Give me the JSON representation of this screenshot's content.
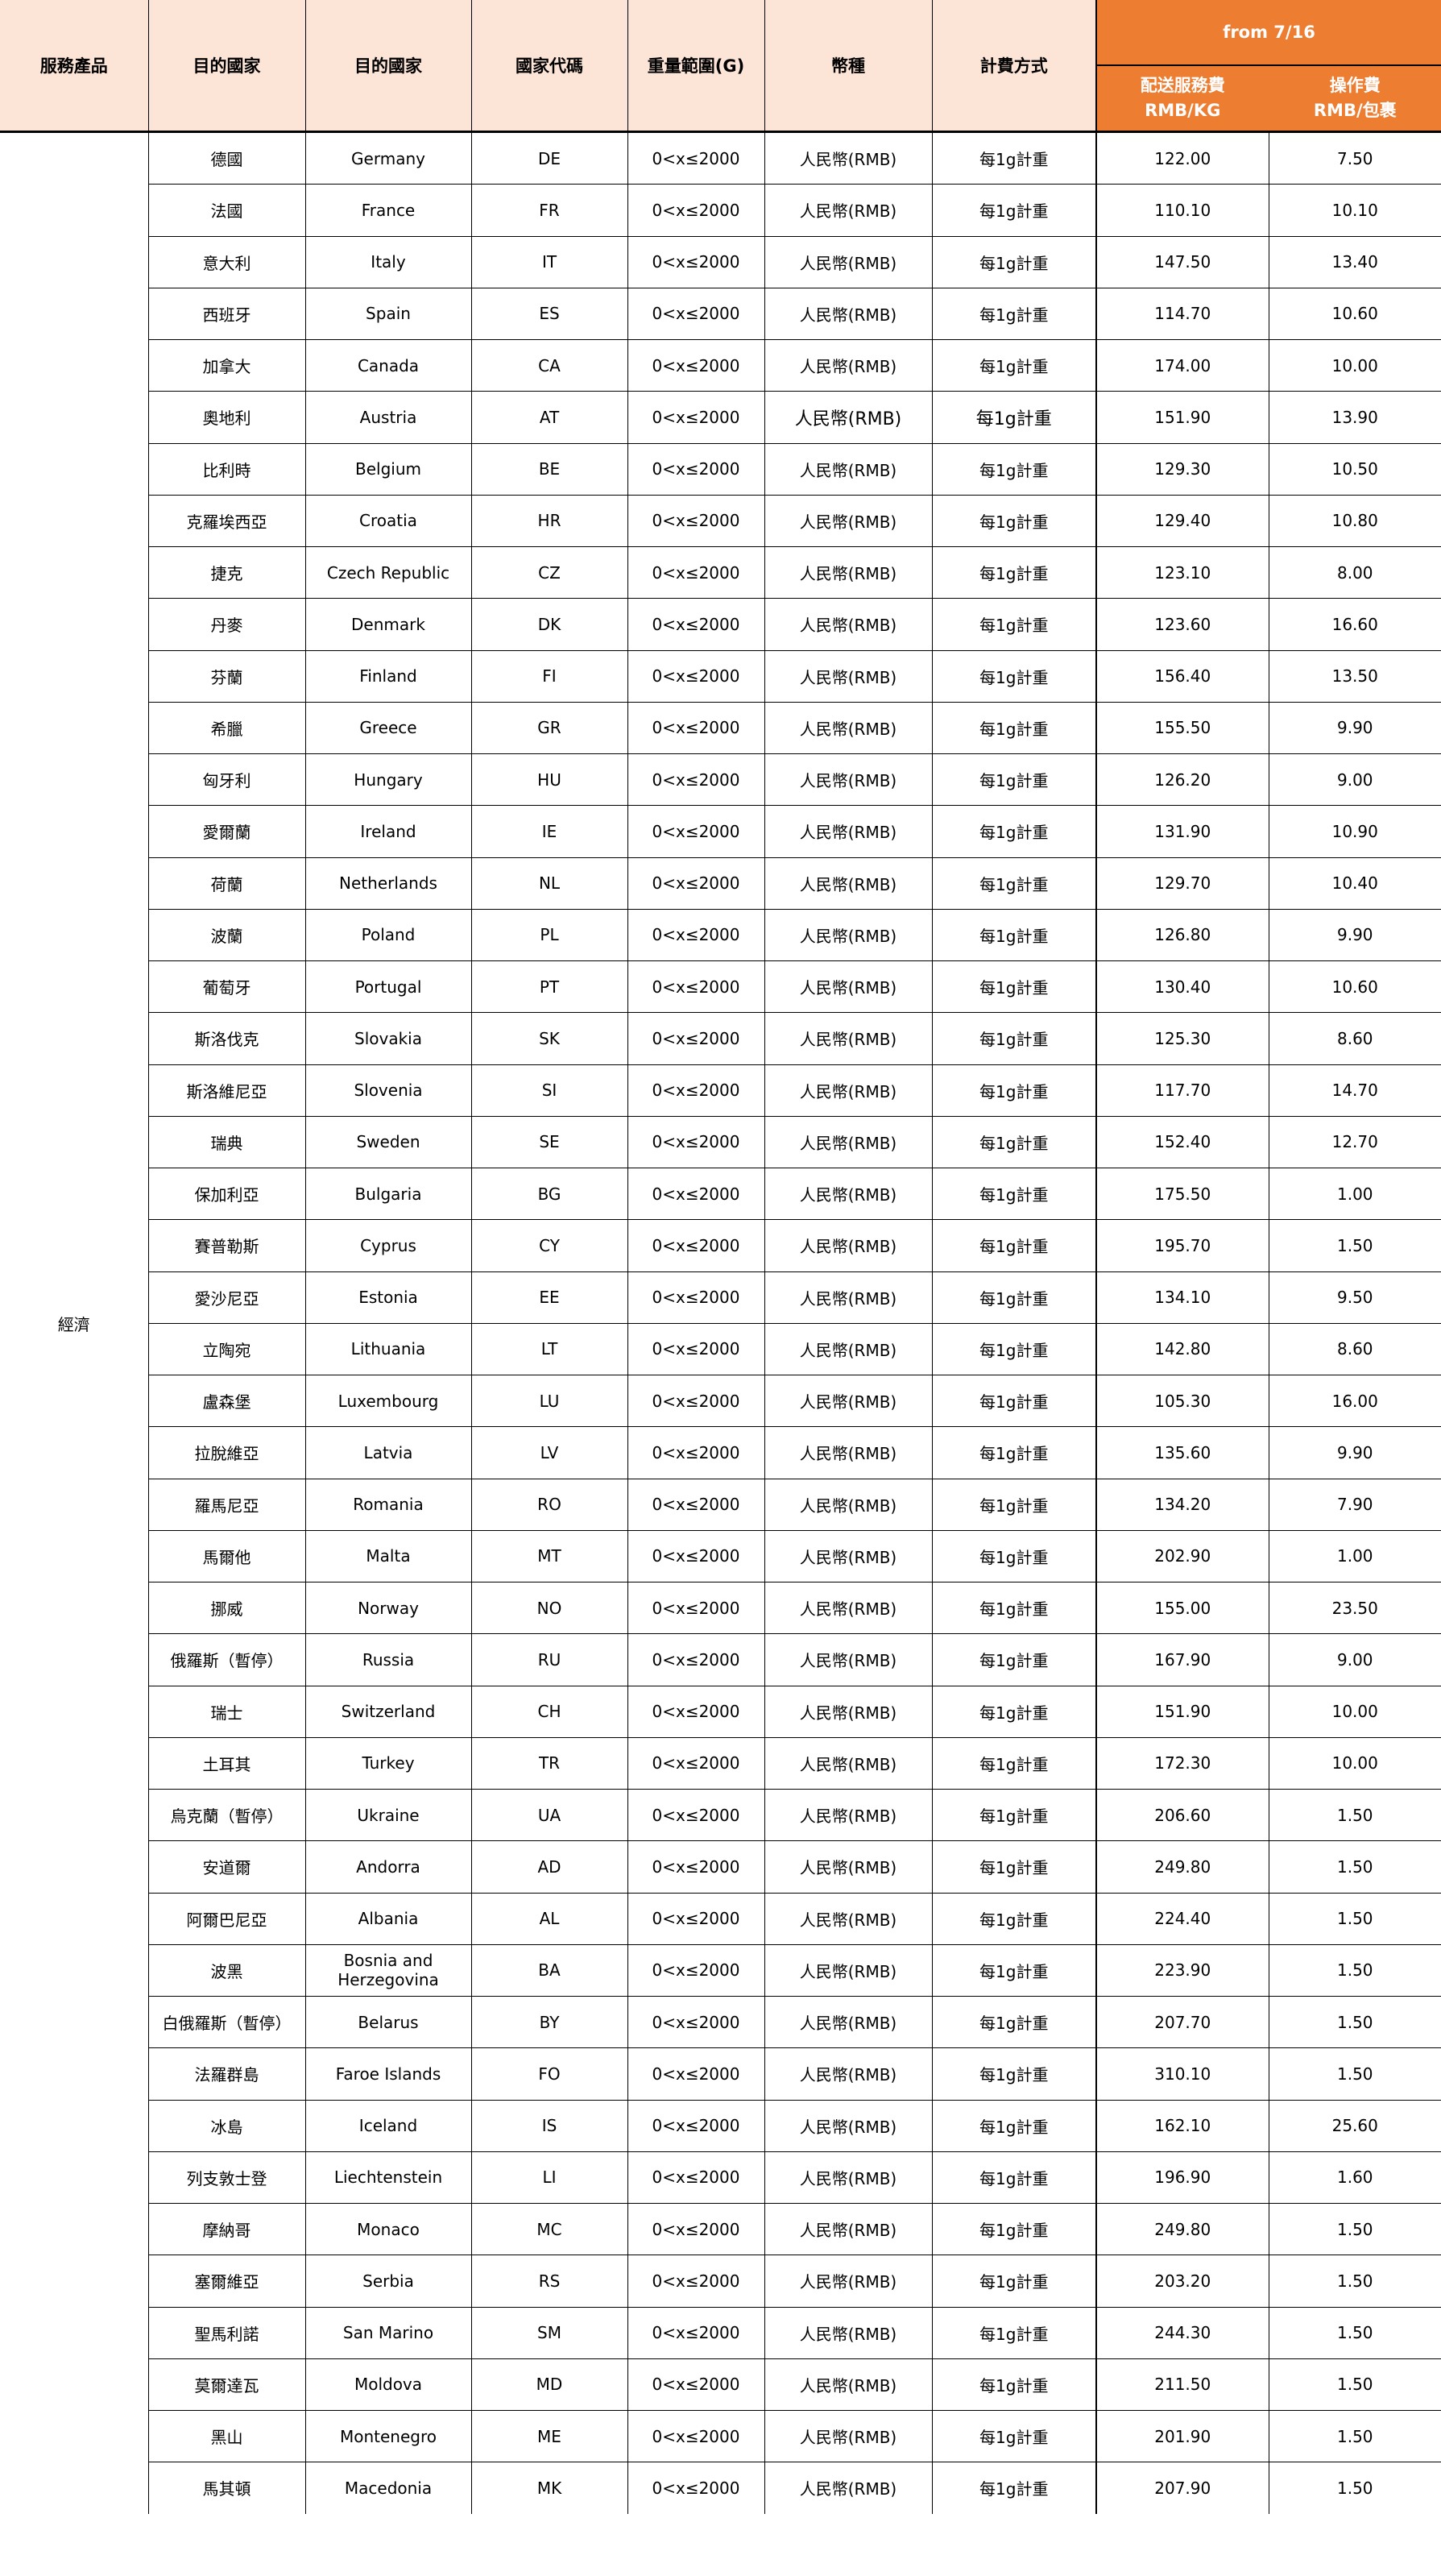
{
  "header": {
    "service": "服務產品",
    "dest_zh": "目的國家",
    "dest_en": "目的國家",
    "code": "國家代碼",
    "weight": "重量範圍(G)",
    "currency": "幣種",
    "billing": "計費方式",
    "period": "from 7/16",
    "fee_label": "配送服務費",
    "fee_unit": "RMB/KG",
    "handling_label": "操作費",
    "handling_unit": "RMB/包裹"
  },
  "colors": {
    "header_bg": "#FCE4D6",
    "accent": "#ED7D31"
  },
  "service": "經濟",
  "rows": [
    {
      "zh": "德國",
      "en": "Germany",
      "code": "DE",
      "weight": "0<x≤2000",
      "currency": "人民幣(RMB)",
      "billing": "每1g計重",
      "fee": "122.00",
      "handling": "7.50"
    },
    {
      "zh": "法國",
      "en": "France",
      "code": "FR",
      "weight": "0<x≤2000",
      "currency": "人民幣(RMB)",
      "billing": "每1g計重",
      "fee": "110.10",
      "handling": "10.10"
    },
    {
      "zh": "意大利",
      "en": "Italy",
      "code": "IT",
      "weight": "0<x≤2000",
      "currency": "人民幣(RMB)",
      "billing": "每1g計重",
      "fee": "147.50",
      "handling": "13.40"
    },
    {
      "zh": "西班牙",
      "en": "Spain",
      "code": "ES",
      "weight": "0<x≤2000",
      "currency": "人民幣(RMB)",
      "billing": "每1g計重",
      "fee": "114.70",
      "handling": "10.60"
    },
    {
      "zh": "加拿大",
      "en": "Canada",
      "code": "CA",
      "weight": "0<x≤2000",
      "currency": "人民幣(RMB)",
      "billing": "每1g計重",
      "fee": "174.00",
      "handling": "10.00"
    },
    {
      "zh": "奧地利",
      "en": "Austria",
      "code": "AT",
      "weight": "0<x≤2000",
      "currency": "人民幣(RMB)",
      "billing": "每1g計重",
      "fee": "151.90",
      "handling": "13.90"
    },
    {
      "zh": "比利時",
      "en": "Belgium",
      "code": "BE",
      "weight": "0<x≤2000",
      "currency": "人民幣(RMB)",
      "billing": "每1g計重",
      "fee": "129.30",
      "handling": "10.50"
    },
    {
      "zh": "克羅埃西亞",
      "en": "Croatia",
      "code": "HR",
      "weight": "0<x≤2000",
      "currency": "人民幣(RMB)",
      "billing": "每1g計重",
      "fee": "129.40",
      "handling": "10.80"
    },
    {
      "zh": "捷克",
      "en": "Czech Republic",
      "code": "CZ",
      "weight": "0<x≤2000",
      "currency": "人民幣(RMB)",
      "billing": "每1g計重",
      "fee": "123.10",
      "handling": "8.00"
    },
    {
      "zh": "丹麥",
      "en": "Denmark",
      "code": "DK",
      "weight": "0<x≤2000",
      "currency": "人民幣(RMB)",
      "billing": "每1g計重",
      "fee": "123.60",
      "handling": "16.60"
    },
    {
      "zh": "芬蘭",
      "en": "Finland",
      "code": "FI",
      "weight": "0<x≤2000",
      "currency": "人民幣(RMB)",
      "billing": "每1g計重",
      "fee": "156.40",
      "handling": "13.50"
    },
    {
      "zh": "希臘",
      "en": "Greece",
      "code": "GR",
      "weight": "0<x≤2000",
      "currency": "人民幣(RMB)",
      "billing": "每1g計重",
      "fee": "155.50",
      "handling": "9.90"
    },
    {
      "zh": "匈牙利",
      "en": "Hungary",
      "code": "HU",
      "weight": "0<x≤2000",
      "currency": "人民幣(RMB)",
      "billing": "每1g計重",
      "fee": "126.20",
      "handling": "9.00"
    },
    {
      "zh": "愛爾蘭",
      "en": "Ireland",
      "code": "IE",
      "weight": "0<x≤2000",
      "currency": "人民幣(RMB)",
      "billing": "每1g計重",
      "fee": "131.90",
      "handling": "10.90"
    },
    {
      "zh": "荷蘭",
      "en": "Netherlands",
      "code": "NL",
      "weight": "0<x≤2000",
      "currency": "人民幣(RMB)",
      "billing": "每1g計重",
      "fee": "129.70",
      "handling": "10.40"
    },
    {
      "zh": "波蘭",
      "en": "Poland",
      "code": "PL",
      "weight": "0<x≤2000",
      "currency": "人民幣(RMB)",
      "billing": "每1g計重",
      "fee": "126.80",
      "handling": "9.90"
    },
    {
      "zh": "葡萄牙",
      "en": "Portugal",
      "code": "PT",
      "weight": "0<x≤2000",
      "currency": "人民幣(RMB)",
      "billing": "每1g計重",
      "fee": "130.40",
      "handling": "10.60"
    },
    {
      "zh": "斯洛伐克",
      "en": "Slovakia",
      "code": "SK",
      "weight": "0<x≤2000",
      "currency": "人民幣(RMB)",
      "billing": "每1g計重",
      "fee": "125.30",
      "handling": "8.60"
    },
    {
      "zh": "斯洛維尼亞",
      "en": "Slovenia",
      "code": "SI",
      "weight": "0<x≤2000",
      "currency": "人民幣(RMB)",
      "billing": "每1g計重",
      "fee": "117.70",
      "handling": "14.70"
    },
    {
      "zh": "瑞典",
      "en": "Sweden",
      "code": "SE",
      "weight": "0<x≤2000",
      "currency": "人民幣(RMB)",
      "billing": "每1g計重",
      "fee": "152.40",
      "handling": "12.70"
    },
    {
      "zh": "保加利亞",
      "en": "Bulgaria",
      "code": "BG",
      "weight": "0<x≤2000",
      "currency": "人民幣(RMB)",
      "billing": "每1g計重",
      "fee": "175.50",
      "handling": "1.00"
    },
    {
      "zh": "賽普勒斯",
      "en": "Cyprus",
      "code": "CY",
      "weight": "0<x≤2000",
      "currency": "人民幣(RMB)",
      "billing": "每1g計重",
      "fee": "195.70",
      "handling": "1.50"
    },
    {
      "zh": "愛沙尼亞",
      "en": "Estonia",
      "code": "EE",
      "weight": "0<x≤2000",
      "currency": "人民幣(RMB)",
      "billing": "每1g計重",
      "fee": "134.10",
      "handling": "9.50"
    },
    {
      "zh": "立陶宛",
      "en": "Lithuania",
      "code": "LT",
      "weight": "0<x≤2000",
      "currency": "人民幣(RMB)",
      "billing": "每1g計重",
      "fee": "142.80",
      "handling": "8.60"
    },
    {
      "zh": "盧森堡",
      "en": "Luxembourg",
      "code": "LU",
      "weight": "0<x≤2000",
      "currency": "人民幣(RMB)",
      "billing": "每1g計重",
      "fee": "105.30",
      "handling": "16.00"
    },
    {
      "zh": "拉脫維亞",
      "en": "Latvia",
      "code": "LV",
      "weight": "0<x≤2000",
      "currency": "人民幣(RMB)",
      "billing": "每1g計重",
      "fee": "135.60",
      "handling": "9.90"
    },
    {
      "zh": "羅馬尼亞",
      "en": "Romania",
      "code": "RO",
      "weight": "0<x≤2000",
      "currency": "人民幣(RMB)",
      "billing": "每1g計重",
      "fee": "134.20",
      "handling": "7.90"
    },
    {
      "zh": "馬爾他",
      "en": "Malta",
      "code": "MT",
      "weight": "0<x≤2000",
      "currency": "人民幣(RMB)",
      "billing": "每1g計重",
      "fee": "202.90",
      "handling": "1.00"
    },
    {
      "zh": "挪威",
      "en": "Norway",
      "code": "NO",
      "weight": "0<x≤2000",
      "currency": "人民幣(RMB)",
      "billing": "每1g計重",
      "fee": "155.00",
      "handling": "23.50"
    },
    {
      "zh": "俄羅斯（暫停）",
      "en": "Russia",
      "code": "RU",
      "weight": "0<x≤2000",
      "currency": "人民幣(RMB)",
      "billing": "每1g計重",
      "fee": "167.90",
      "handling": "9.00"
    },
    {
      "zh": "瑞士",
      "en": "Switzerland",
      "code": "CH",
      "weight": "0<x≤2000",
      "currency": "人民幣(RMB)",
      "billing": "每1g計重",
      "fee": "151.90",
      "handling": "10.00"
    },
    {
      "zh": "土耳其",
      "en": "Turkey",
      "code": "TR",
      "weight": "0<x≤2000",
      "currency": "人民幣(RMB)",
      "billing": "每1g計重",
      "fee": "172.30",
      "handling": "10.00"
    },
    {
      "zh": "烏克蘭（暫停）",
      "en": "Ukraine",
      "code": "UA",
      "weight": "0<x≤2000",
      "currency": "人民幣(RMB)",
      "billing": "每1g計重",
      "fee": "206.60",
      "handling": "1.50"
    },
    {
      "zh": "安道爾",
      "en": "Andorra",
      "code": "AD",
      "weight": "0<x≤2000",
      "currency": "人民幣(RMB)",
      "billing": "每1g計重",
      "fee": "249.80",
      "handling": "1.50"
    },
    {
      "zh": "阿爾巴尼亞",
      "en": "Albania",
      "code": "AL",
      "weight": "0<x≤2000",
      "currency": "人民幣(RMB)",
      "billing": "每1g計重",
      "fee": "224.40",
      "handling": "1.50"
    },
    {
      "zh": "波黑",
      "en": "Bosnia and Herzegovina",
      "code": "BA",
      "weight": "0<x≤2000",
      "currency": "人民幣(RMB)",
      "billing": "每1g計重",
      "fee": "223.90",
      "handling": "1.50"
    },
    {
      "zh": "白俄羅斯（暫停）",
      "en": "Belarus",
      "code": "BY",
      "weight": "0<x≤2000",
      "currency": "人民幣(RMB)",
      "billing": "每1g計重",
      "fee": "207.70",
      "handling": "1.50"
    },
    {
      "zh": "法羅群島",
      "en": "Faroe Islands",
      "code": "FO",
      "weight": "0<x≤2000",
      "currency": "人民幣(RMB)",
      "billing": "每1g計重",
      "fee": "310.10",
      "handling": "1.50"
    },
    {
      "zh": "冰島",
      "en": "Iceland",
      "code": "IS",
      "weight": "0<x≤2000",
      "currency": "人民幣(RMB)",
      "billing": "每1g計重",
      "fee": "162.10",
      "handling": "25.60"
    },
    {
      "zh": "列支敦士登",
      "en": "Liechtenstein",
      "code": "LI",
      "weight": "0<x≤2000",
      "currency": "人民幣(RMB)",
      "billing": "每1g計重",
      "fee": "196.90",
      "handling": "1.60"
    },
    {
      "zh": "摩納哥",
      "en": "Monaco",
      "code": "MC",
      "weight": "0<x≤2000",
      "currency": "人民幣(RMB)",
      "billing": "每1g計重",
      "fee": "249.80",
      "handling": "1.50"
    },
    {
      "zh": "塞爾維亞",
      "en": "Serbia",
      "code": "RS",
      "weight": "0<x≤2000",
      "currency": "人民幣(RMB)",
      "billing": "每1g計重",
      "fee": "203.20",
      "handling": "1.50"
    },
    {
      "zh": "聖馬利諾",
      "en": "San Marino",
      "code": "SM",
      "weight": "0<x≤2000",
      "currency": "人民幣(RMB)",
      "billing": "每1g計重",
      "fee": "244.30",
      "handling": "1.50"
    },
    {
      "zh": "莫爾達瓦",
      "en": "Moldova",
      "code": "MD",
      "weight": "0<x≤2000",
      "currency": "人民幣(RMB)",
      "billing": "每1g計重",
      "fee": "211.50",
      "handling": "1.50"
    },
    {
      "zh": "黑山",
      "en": "Montenegro",
      "code": "ME",
      "weight": "0<x≤2000",
      "currency": "人民幣(RMB)",
      "billing": "每1g計重",
      "fee": "201.90",
      "handling": "1.50"
    },
    {
      "zh": "馬其頓",
      "en": "Macedonia",
      "code": "MK",
      "weight": "0<x≤2000",
      "currency": "人民幣(RMB)",
      "billing": "每1g計重",
      "fee": "207.90",
      "handling": "1.50"
    }
  ]
}
